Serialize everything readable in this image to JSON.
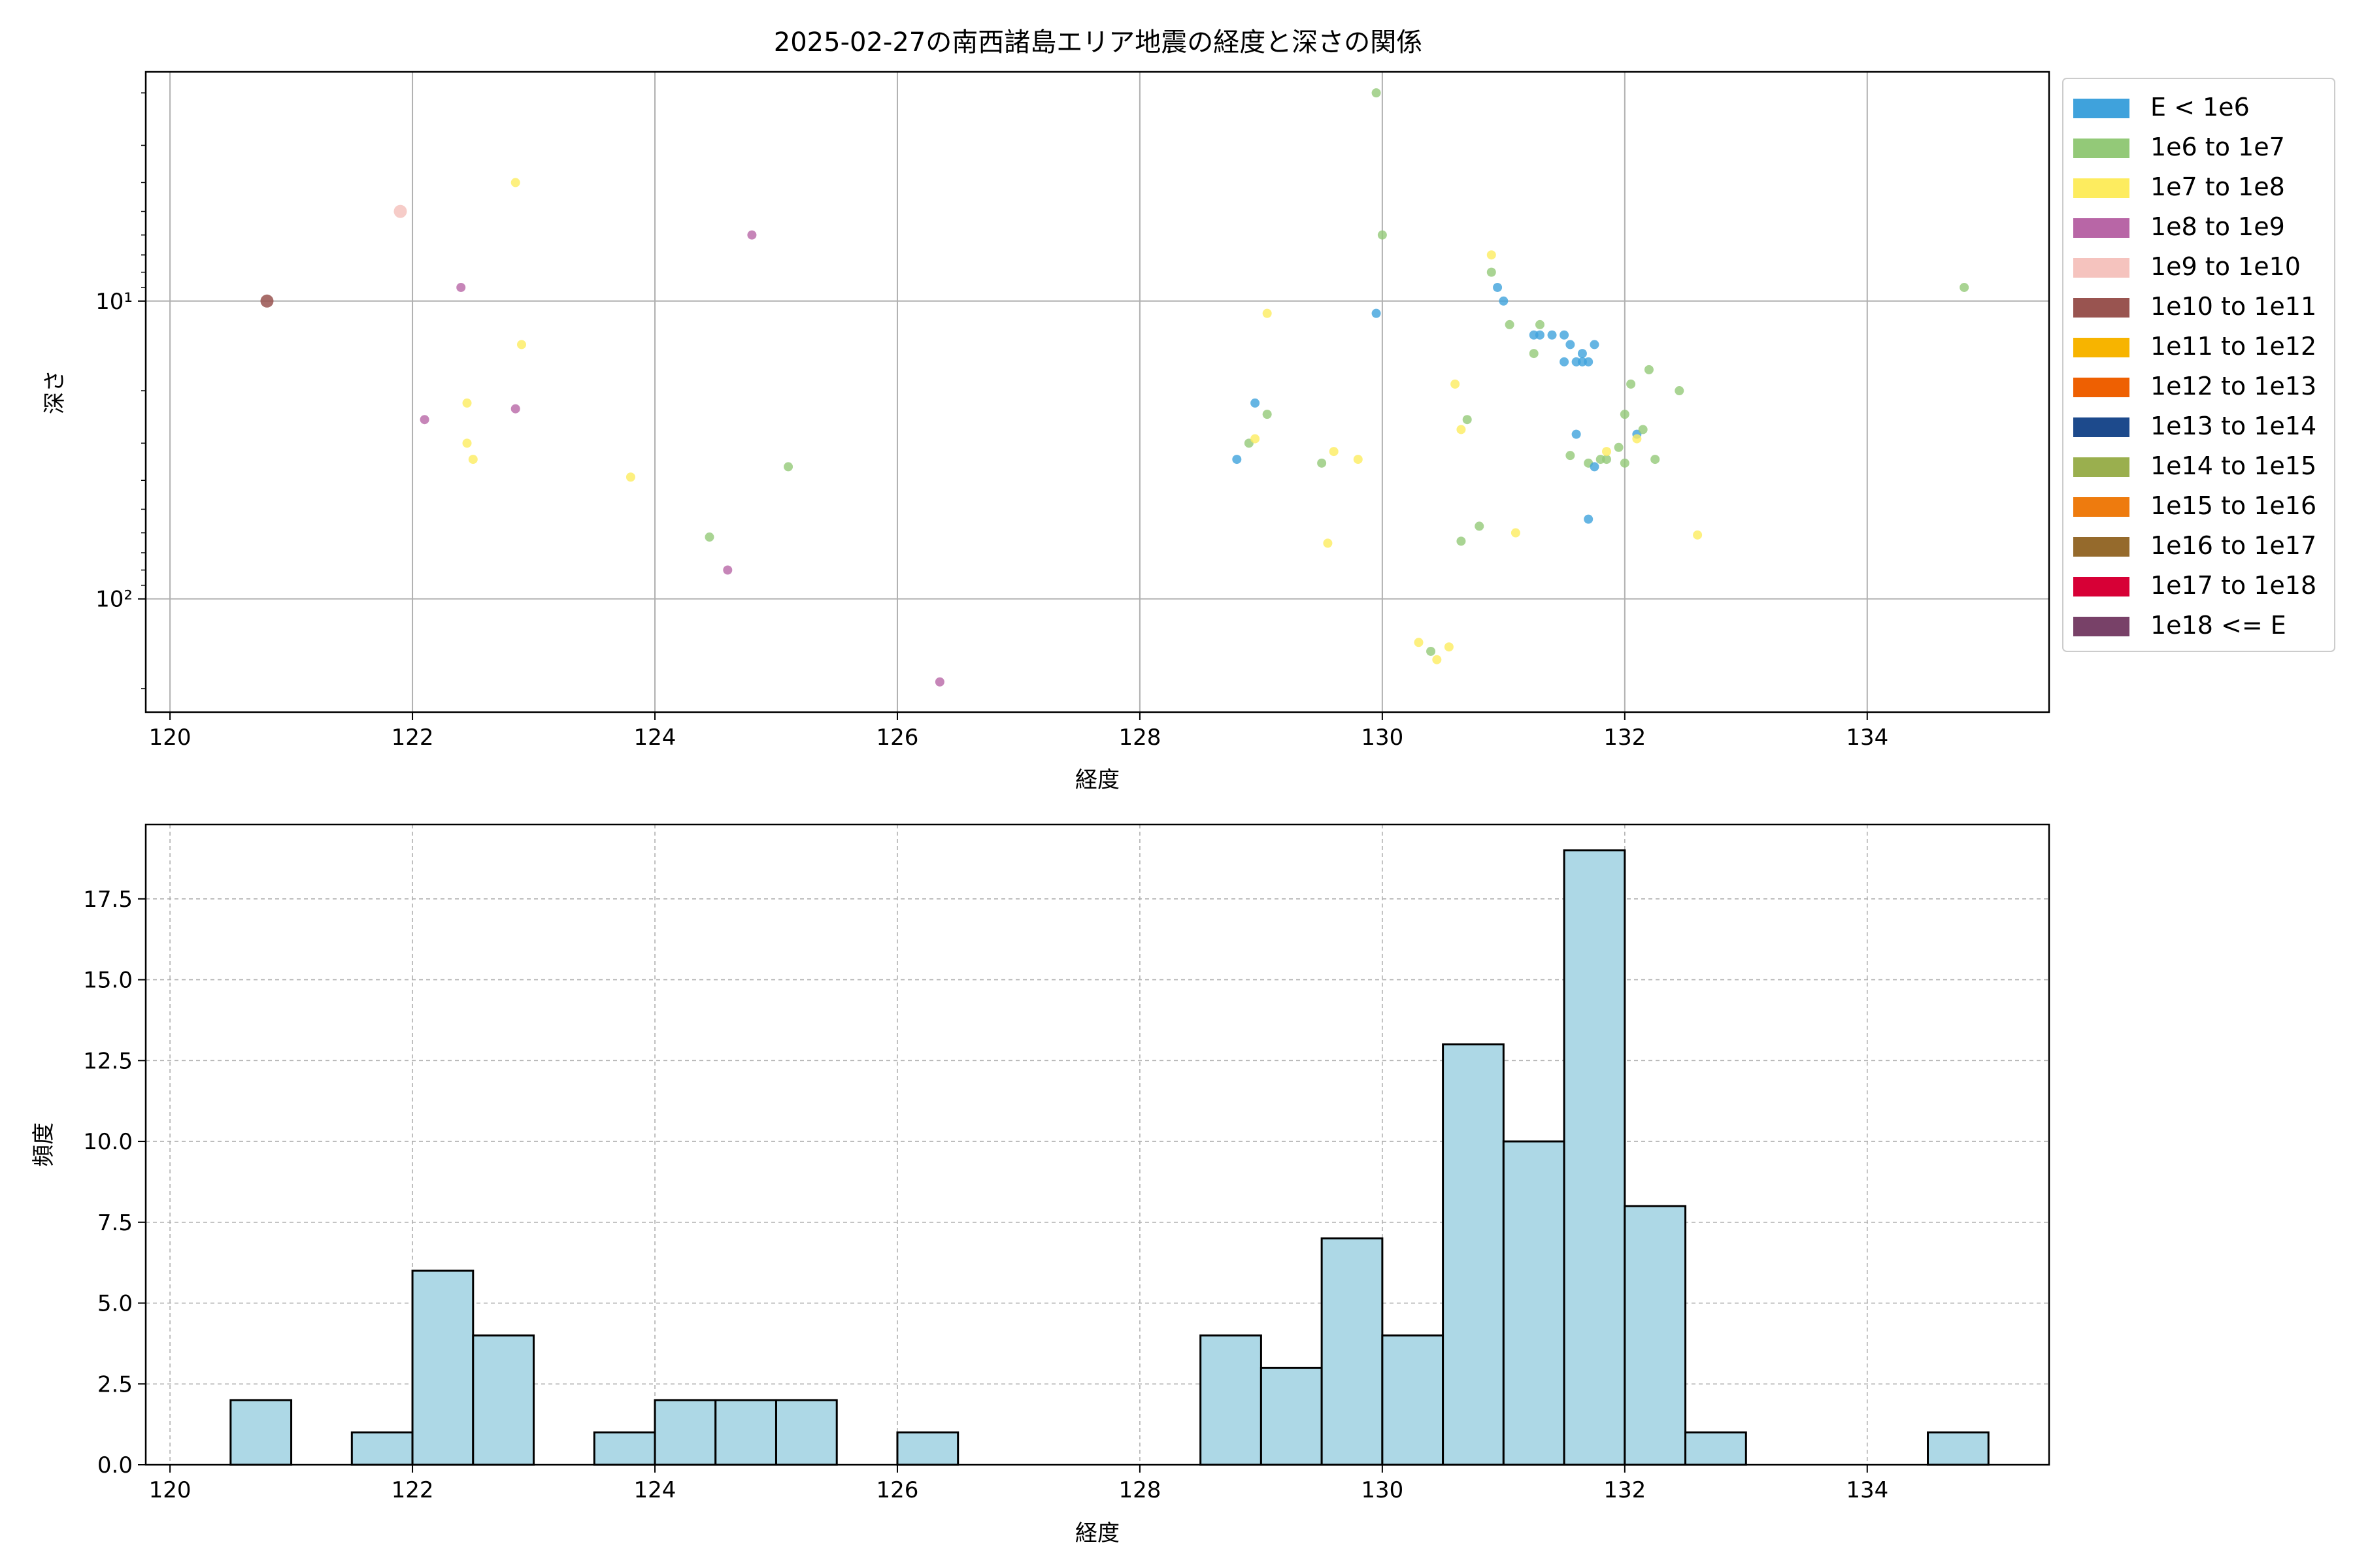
{
  "chart_data": [
    {
      "type": "scatter",
      "title": "2025-02-27の南西諸島エリア地震の経度と深さの関係",
      "xlabel": "経度",
      "ylabel": "深さ",
      "xlim": [
        119.8,
        135.5
      ],
      "ylim": [
        240,
        1.7
      ],
      "y_scale": "log",
      "y_inverted": true,
      "xticks": [
        120,
        122,
        124,
        126,
        128,
        130,
        132,
        134
      ],
      "yticks": [
        {
          "value": 10,
          "label": "10¹"
        },
        {
          "value": 100,
          "label": "10²"
        }
      ],
      "grid": true,
      "legend": {
        "placement": "outside-right",
        "entries": [
          {
            "label": "E < 1e6",
            "color": "#3fa2dc"
          },
          {
            "label": "1e6 to 1e7",
            "color": "#93c978"
          },
          {
            "label": "1e7 to 1e8",
            "color": "#fdec5f"
          },
          {
            "label": "1e8 to 1e9",
            "color": "#b866a6"
          },
          {
            "label": "1e9 to 1e10",
            "color": "#f5c3be"
          },
          {
            "label": "1e10 to 1e11",
            "color": "#995450"
          },
          {
            "label": "1e11 to 1e12",
            "color": "#f7b400"
          },
          {
            "label": "1e12 to 1e13",
            "color": "#ee6002"
          },
          {
            "label": "1e13 to 1e14",
            "color": "#1d4a8c"
          },
          {
            "label": "1e14 to 1e15",
            "color": "#9aaf4e"
          },
          {
            "label": "1e15 to 1e16",
            "color": "#ee7b0e"
          },
          {
            "label": "1e16 to 1e17",
            "color": "#956a2c"
          },
          {
            "label": "1e17 to 1e18",
            "color": "#d70036"
          },
          {
            "label": "1e18 <= E",
            "color": "#784168"
          }
        ]
      },
      "points": [
        {
          "x": 120.8,
          "y": 10,
          "c": 5
        },
        {
          "x": 121.9,
          "y": 5,
          "c": 4
        },
        {
          "x": 122.1,
          "y": 25,
          "c": 3
        },
        {
          "x": 122.4,
          "y": 9,
          "c": 3
        },
        {
          "x": 122.45,
          "y": 22,
          "c": 2
        },
        {
          "x": 122.45,
          "y": 30,
          "c": 2
        },
        {
          "x": 122.5,
          "y": 34,
          "c": 2
        },
        {
          "x": 122.85,
          "y": 4,
          "c": 2
        },
        {
          "x": 122.85,
          "y": 23,
          "c": 3
        },
        {
          "x": 122.9,
          "y": 14,
          "c": 2
        },
        {
          "x": 123.8,
          "y": 39,
          "c": 2
        },
        {
          "x": 124.45,
          "y": 62,
          "c": 1
        },
        {
          "x": 124.6,
          "y": 80,
          "c": 3
        },
        {
          "x": 124.8,
          "y": 6,
          "c": 3
        },
        {
          "x": 125.1,
          "y": 36,
          "c": 1
        },
        {
          "x": 126.35,
          "y": 190,
          "c": 3
        },
        {
          "x": 128.8,
          "y": 34,
          "c": 0
        },
        {
          "x": 128.9,
          "y": 30,
          "c": 1
        },
        {
          "x": 128.95,
          "y": 29,
          "c": 2
        },
        {
          "x": 128.95,
          "y": 22,
          "c": 0
        },
        {
          "x": 129.05,
          "y": 24,
          "c": 1
        },
        {
          "x": 129.05,
          "y": 11,
          "c": 2
        },
        {
          "x": 129.5,
          "y": 35,
          "c": 1
        },
        {
          "x": 129.55,
          "y": 65,
          "c": 2
        },
        {
          "x": 129.6,
          "y": 32,
          "c": 2
        },
        {
          "x": 129.8,
          "y": 34,
          "c": 2
        },
        {
          "x": 129.95,
          "y": 11,
          "c": 0
        },
        {
          "x": 129.95,
          "y": 2,
          "c": 1
        },
        {
          "x": 130.0,
          "y": 6,
          "c": 1
        },
        {
          "x": 130.3,
          "y": 140,
          "c": 2
        },
        {
          "x": 130.4,
          "y": 150,
          "c": 1
        },
        {
          "x": 130.45,
          "y": 160,
          "c": 2
        },
        {
          "x": 130.55,
          "y": 145,
          "c": 2
        },
        {
          "x": 130.6,
          "y": 19,
          "c": 2
        },
        {
          "x": 130.65,
          "y": 27,
          "c": 2
        },
        {
          "x": 130.65,
          "y": 64,
          "c": 1
        },
        {
          "x": 130.7,
          "y": 25,
          "c": 1
        },
        {
          "x": 130.8,
          "y": 57,
          "c": 1
        },
        {
          "x": 130.9,
          "y": 7,
          "c": 2
        },
        {
          "x": 130.9,
          "y": 8,
          "c": 1
        },
        {
          "x": 130.95,
          "y": 9,
          "c": 0
        },
        {
          "x": 131.0,
          "y": 10,
          "c": 0
        },
        {
          "x": 131.05,
          "y": 12,
          "c": 1
        },
        {
          "x": 131.1,
          "y": 60,
          "c": 2
        },
        {
          "x": 131.25,
          "y": 13,
          "c": 0
        },
        {
          "x": 131.25,
          "y": 15,
          "c": 1
        },
        {
          "x": 131.3,
          "y": 12,
          "c": 1
        },
        {
          "x": 131.3,
          "y": 13,
          "c": 0
        },
        {
          "x": 131.4,
          "y": 13,
          "c": 0
        },
        {
          "x": 131.5,
          "y": 13,
          "c": 0
        },
        {
          "x": 131.5,
          "y": 16,
          "c": 0
        },
        {
          "x": 131.55,
          "y": 33,
          "c": 1
        },
        {
          "x": 131.55,
          "y": 14,
          "c": 0
        },
        {
          "x": 131.6,
          "y": 28,
          "c": 0
        },
        {
          "x": 131.6,
          "y": 16,
          "c": 0
        },
        {
          "x": 131.65,
          "y": 16,
          "c": 0
        },
        {
          "x": 131.65,
          "y": 15,
          "c": 0
        },
        {
          "x": 131.7,
          "y": 16,
          "c": 0
        },
        {
          "x": 131.7,
          "y": 54,
          "c": 0
        },
        {
          "x": 131.7,
          "y": 35,
          "c": 1
        },
        {
          "x": 131.75,
          "y": 14,
          "c": 0
        },
        {
          "x": 131.75,
          "y": 36,
          "c": 0
        },
        {
          "x": 131.8,
          "y": 34,
          "c": 1
        },
        {
          "x": 131.85,
          "y": 34,
          "c": 1
        },
        {
          "x": 131.85,
          "y": 32,
          "c": 2
        },
        {
          "x": 131.95,
          "y": 31,
          "c": 1
        },
        {
          "x": 132.0,
          "y": 24,
          "c": 1
        },
        {
          "x": 132.0,
          "y": 35,
          "c": 1
        },
        {
          "x": 132.05,
          "y": 19,
          "c": 1
        },
        {
          "x": 132.1,
          "y": 28,
          "c": 0
        },
        {
          "x": 132.1,
          "y": 29,
          "c": 2
        },
        {
          "x": 132.15,
          "y": 27,
          "c": 1
        },
        {
          "x": 132.2,
          "y": 17,
          "c": 1
        },
        {
          "x": 132.25,
          "y": 34,
          "c": 1
        },
        {
          "x": 132.45,
          "y": 20,
          "c": 1
        },
        {
          "x": 132.6,
          "y": 61,
          "c": 2
        },
        {
          "x": 134.8,
          "y": 9,
          "c": 1
        }
      ]
    },
    {
      "type": "bar",
      "title": "",
      "xlabel": "経度",
      "ylabel": "頻度",
      "xlim": [
        119.8,
        135.5
      ],
      "ylim": [
        0,
        19.8
      ],
      "xticks": [
        120,
        122,
        124,
        126,
        128,
        130,
        132,
        134
      ],
      "yticks": [
        0.0,
        2.5,
        5.0,
        7.5,
        10.0,
        12.5,
        15.0,
        17.5
      ],
      "ytick_labels": [
        "0.0",
        "2.5",
        "5.0",
        "7.5",
        "10.0",
        "12.5",
        "15.0",
        "17.5"
      ],
      "grid": true,
      "bar_color": "#add8e6",
      "bin_width": 0.5,
      "bins": [
        {
          "start": 120.5,
          "count": 2
        },
        {
          "start": 121.5,
          "count": 1
        },
        {
          "start": 122.0,
          "count": 6
        },
        {
          "start": 122.5,
          "count": 4
        },
        {
          "start": 123.5,
          "count": 1
        },
        {
          "start": 124.0,
          "count": 2
        },
        {
          "start": 124.5,
          "count": 2
        },
        {
          "start": 125.0,
          "count": 2
        },
        {
          "start": 126.0,
          "count": 1
        },
        {
          "start": 128.5,
          "count": 4
        },
        {
          "start": 129.0,
          "count": 3
        },
        {
          "start": 129.5,
          "count": 7
        },
        {
          "start": 130.0,
          "count": 4
        },
        {
          "start": 130.5,
          "count": 13
        },
        {
          "start": 131.0,
          "count": 10
        },
        {
          "start": 131.5,
          "count": 19
        },
        {
          "start": 132.0,
          "count": 8
        },
        {
          "start": 132.5,
          "count": 1
        },
        {
          "start": 134.5,
          "count": 1
        }
      ]
    }
  ]
}
